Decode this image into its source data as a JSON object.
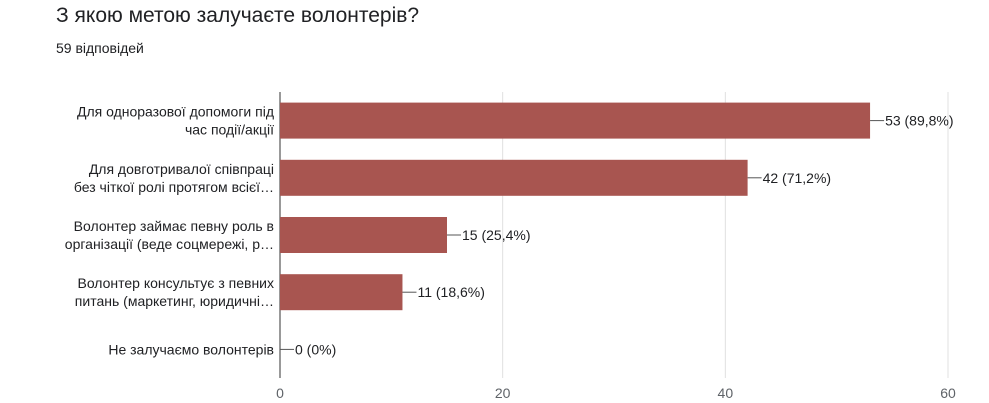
{
  "header": {
    "title": "З якою метою залучаєте волонтерів?",
    "responses": "59 відповідей"
  },
  "chart_data": {
    "type": "bar",
    "orientation": "horizontal",
    "categories": [
      [
        "Для одноразової допомоги під",
        "час події/акції"
      ],
      [
        "Для довготривалої співпраці",
        "без чіткої ролі протягом всієї…"
      ],
      [
        "Волонтер займає певну роль в",
        "організації (веде соцмережі, р…"
      ],
      [
        "Волонтер консультує з певних",
        "питань (маркетинг, юридичні…"
      ],
      [
        "Не залучаємо волонтерів"
      ]
    ],
    "values": [
      53,
      42,
      15,
      11,
      0
    ],
    "value_labels": [
      "53 (89,8%)",
      "42 (71,2%)",
      "15 (25,4%)",
      "11 (18,6%)",
      "0 (0%)"
    ],
    "xlim": [
      0,
      60
    ],
    "xticks": [
      "0",
      "20",
      "40",
      "60"
    ],
    "grid": true,
    "bar_color": "#a85550"
  }
}
